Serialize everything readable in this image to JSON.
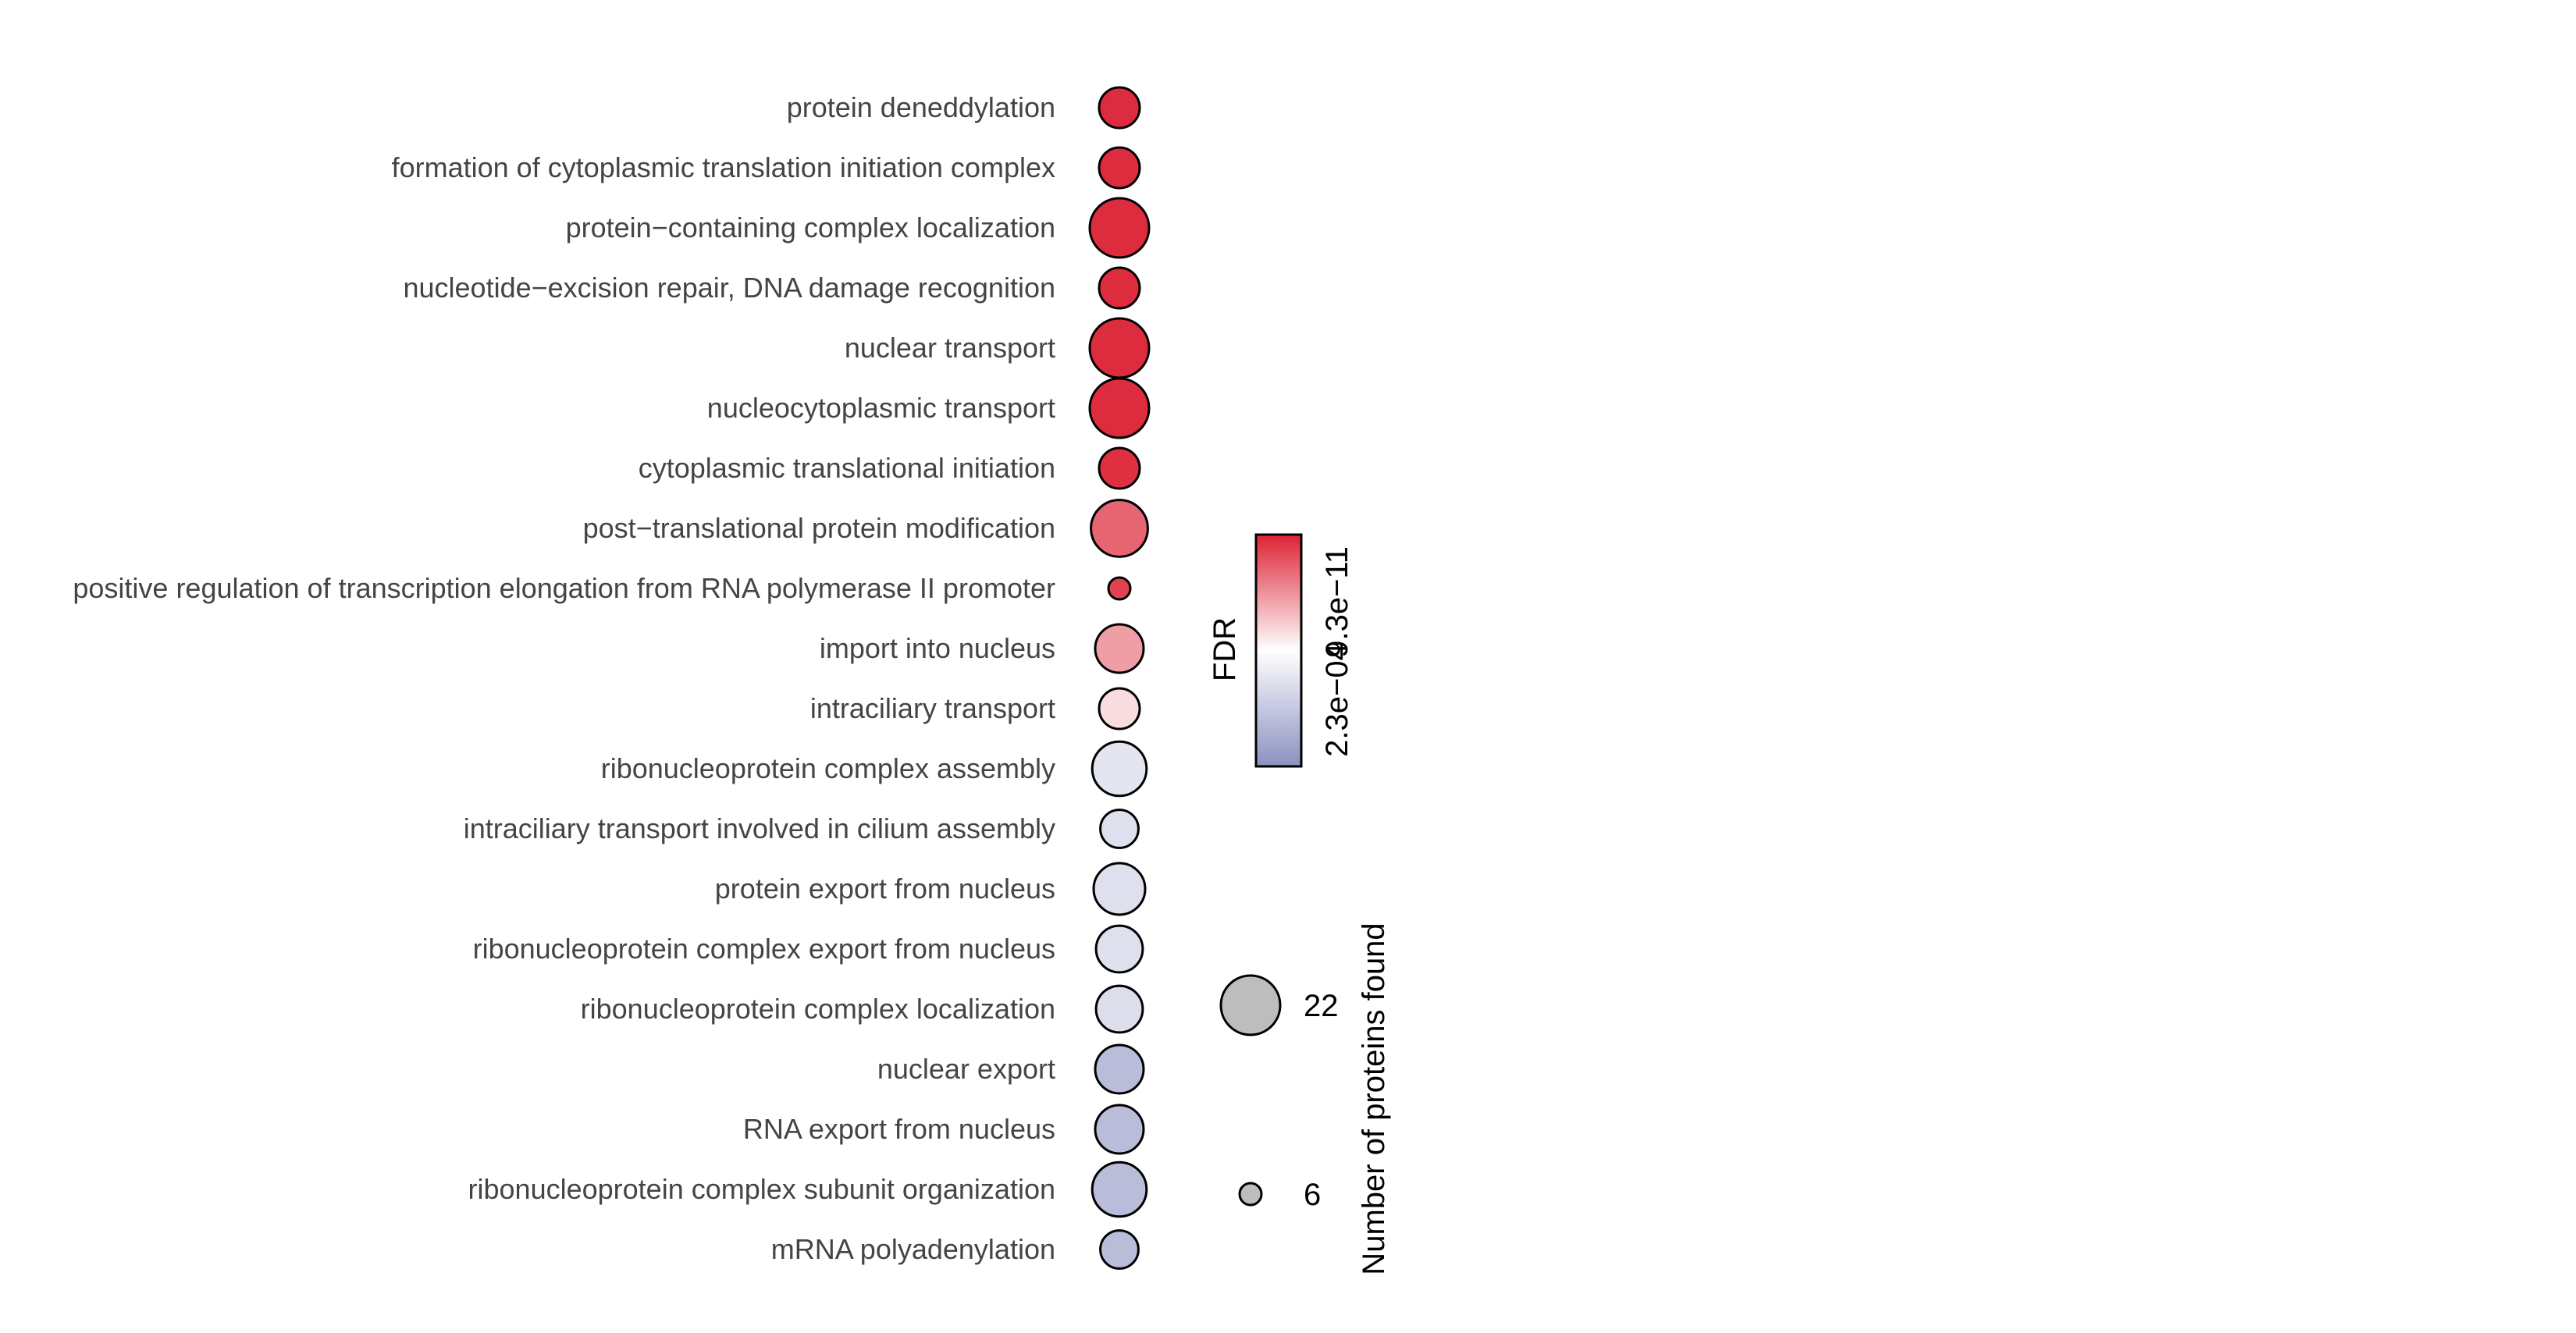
{
  "chart_data": {
    "type": "scatter",
    "categories": [
      "protein deneddylation",
      "formation of cytoplasmic translation initiation complex",
      "protein−containing complex localization",
      "nucleotide−excision repair, DNA damage recognition",
      "nuclear transport",
      "nucleocytoplasmic transport",
      "cytoplasmic translational initiation",
      "post−translational protein modification",
      "positive regulation of transcription elongation from RNA polymerase II promoter",
      "import into nucleus",
      "intraciliary transport",
      "ribonucleoprotein complex assembly",
      "intraciliary transport involved in cilium assembly",
      "protein export from nucleus",
      "ribonucleoprotein complex export from nucleus",
      "ribonucleoprotein complex localization",
      "nuclear export",
      "RNA export from nucleus",
      "ribonucleoprotein complex subunit organization",
      "mRNA polyadenylation"
    ],
    "size": [
      10,
      10,
      22,
      10,
      22,
      22,
      10,
      20,
      6,
      14,
      10,
      18,
      9,
      16,
      13,
      13,
      14,
      14,
      18,
      9
    ],
    "color_fraction": [
      0.98,
      0.98,
      0.98,
      0.98,
      0.98,
      0.98,
      0.97,
      0.85,
      0.93,
      0.72,
      0.58,
      0.38,
      0.36,
      0.36,
      0.36,
      0.35,
      0.2,
      0.2,
      0.2,
      0.2
    ],
    "color_legend": {
      "title": "FDR",
      "low_label": "2.3e−04",
      "high_label": "9.3e−11",
      "low_color": "#8b91c0",
      "mid_color": "#ffffff",
      "high_color": "#dc2335"
    },
    "size_legend": {
      "title": "Number of proteins found",
      "entries": [
        {
          "label": "22",
          "value": 22
        },
        {
          "label": "6",
          "value": 6
        }
      ]
    },
    "marker_fill_legend": "#bdbdbd",
    "marker_stroke": "#000000"
  }
}
